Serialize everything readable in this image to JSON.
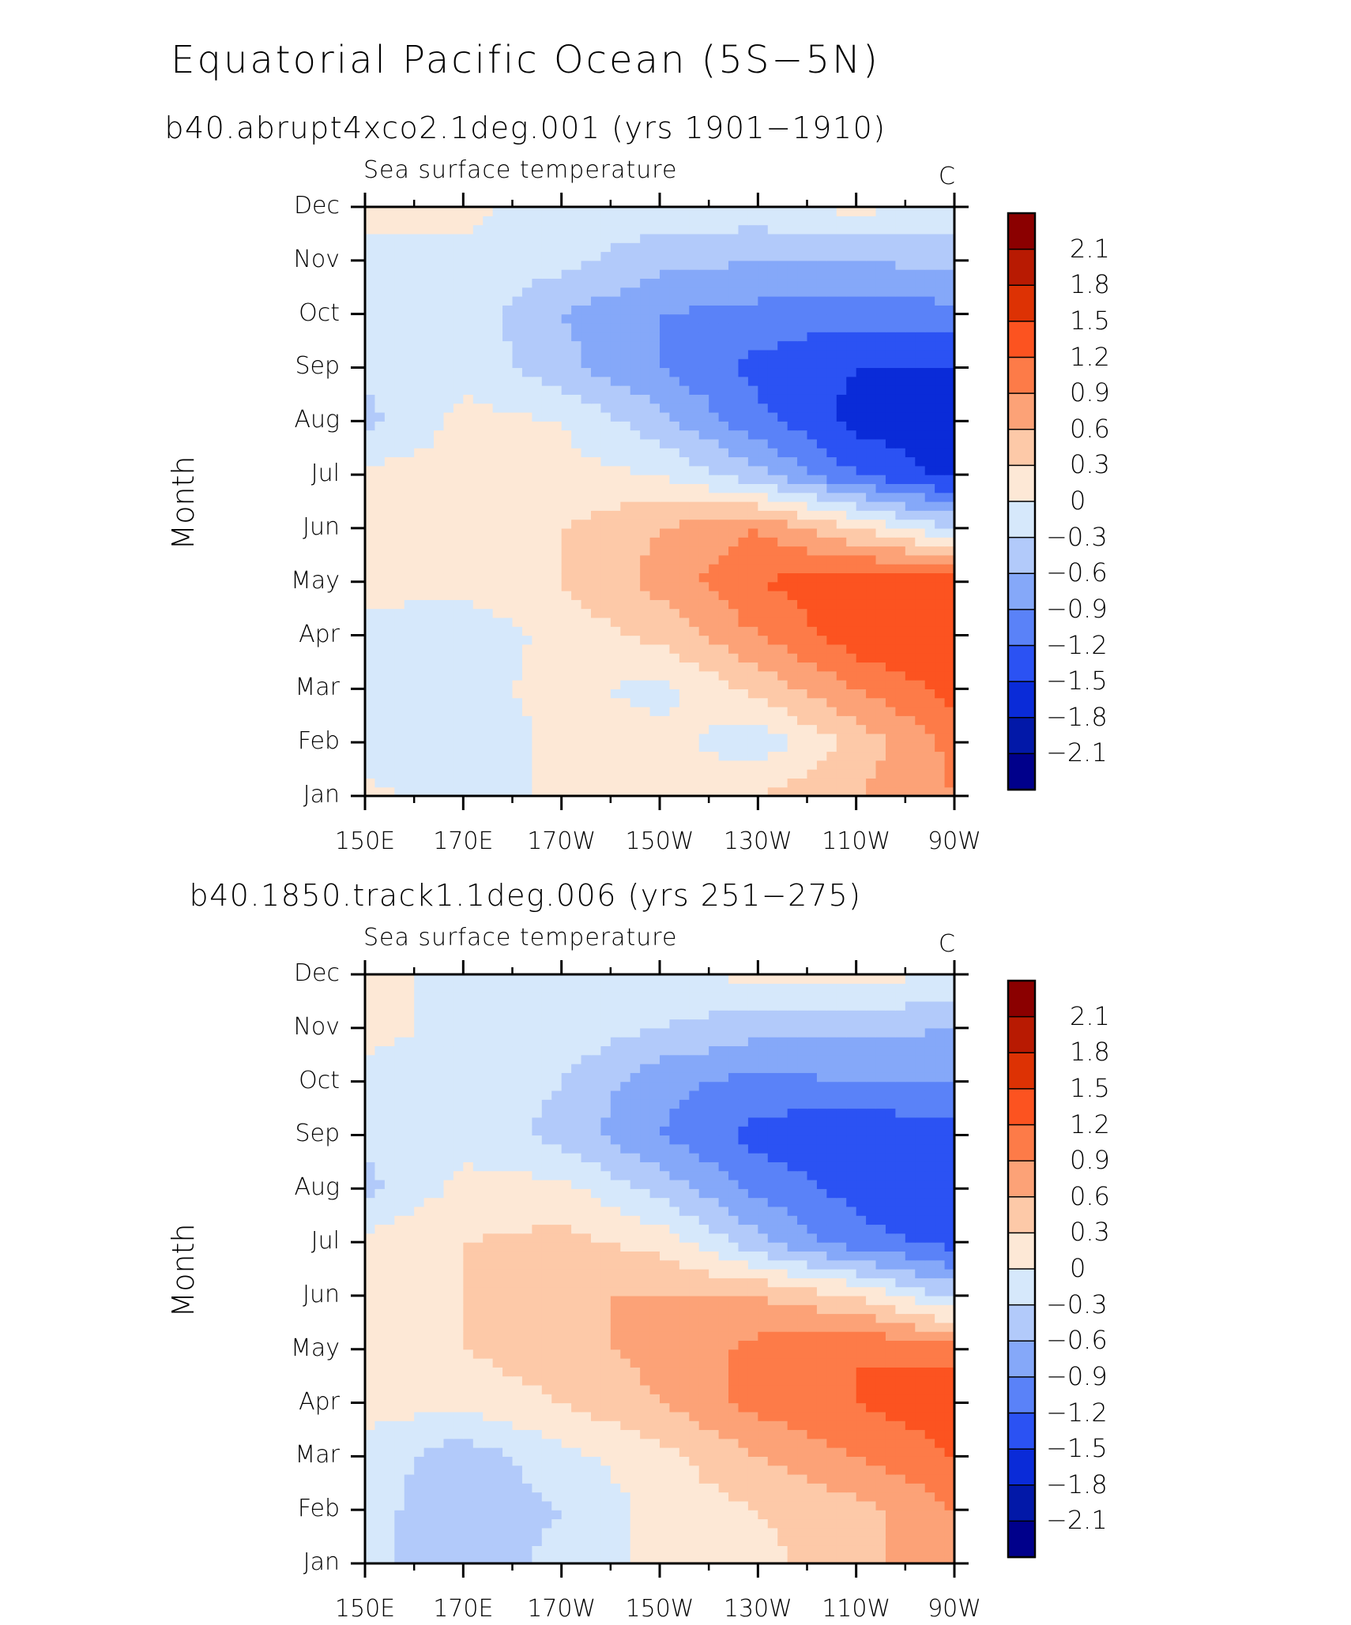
{
  "title": "Equatorial Pacific Ocean (5S−5N)",
  "months": [
    "Jan",
    "Feb",
    "Mar",
    "Apr",
    "May",
    "Jun",
    "Jul",
    "Aug",
    "Sep",
    "Oct",
    "Nov",
    "Dec"
  ],
  "lon_ticks": [
    "150E",
    "170E",
    "170W",
    "150W",
    "130W",
    "110W",
    "90W"
  ],
  "ylabel": "Month",
  "colorbar": {
    "labels": [
      "2.1",
      "1.8",
      "1.5",
      "1.2",
      "0.9",
      "0.6",
      "0.3",
      "0",
      "−0.3",
      "−0.6",
      "−0.9",
      "−1.2",
      "−1.5",
      "−1.8",
      "−2.1"
    ],
    "colors": [
      "#8b0000",
      "#b81a02",
      "#dd3204",
      "#fc5320",
      "#fd7b48",
      "#fca277",
      "#fdc9a8",
      "#fde8d6",
      "#d6e8fb",
      "#b2cafa",
      "#85a8f9",
      "#5a82f8",
      "#2b52f3",
      "#0a2bd8",
      "#0218a8",
      "#00008b"
    ]
  },
  "chart_data": [
    {
      "type": "heatmap",
      "subtitle": "b40.abrupt4xco2.1deg.001 (yrs 1901−1910)",
      "variable": "Sea surface temperature",
      "units": "C",
      "xlabel": "",
      "ylabel": "Month",
      "x": [
        "150E",
        "170E",
        "170W",
        "150W",
        "130W",
        "110W",
        "90W"
      ],
      "y": [
        "Jan",
        "Feb",
        "Mar",
        "Apr",
        "May",
        "Jun",
        "Jul",
        "Aug",
        "Sep",
        "Oct",
        "Nov",
        "Dec"
      ],
      "zlim": [
        -2.1,
        2.1
      ],
      "values": [
        [
          0.1,
          -0.2,
          0.1,
          0.1,
          0.3,
          0.6,
          0.9
        ],
        [
          -0.2,
          -0.3,
          0.1,
          0.1,
          -0.2,
          0.4,
          1.0
        ],
        [
          -0.1,
          -0.1,
          0.1,
          -0.1,
          0.4,
          0.9,
          1.3
        ],
        [
          -0.1,
          -0.2,
          0.1,
          0.4,
          0.9,
          1.4,
          1.5
        ],
        [
          0.1,
          0.1,
          0.3,
          0.7,
          1.2,
          1.4,
          1.4
        ],
        [
          0.1,
          0.1,
          0.3,
          0.6,
          0.9,
          0.3,
          -0.3
        ],
        [
          0.1,
          0.1,
          0.1,
          0.0,
          -0.5,
          -1.2,
          -1.6
        ],
        [
          -0.4,
          0.1,
          0.0,
          -0.5,
          -1.1,
          -1.6,
          -1.7
        ],
        [
          -0.2,
          -0.1,
          -0.5,
          -0.9,
          -1.3,
          -1.5,
          -1.5
        ],
        [
          -0.1,
          -0.1,
          -0.6,
          -0.9,
          -1.0,
          -1.1,
          -1.0
        ],
        [
          -0.1,
          -0.1,
          -0.2,
          -0.5,
          -0.6,
          -0.6,
          -0.5
        ],
        [
          0.1,
          0.1,
          -0.2,
          -0.1,
          -0.1,
          0.1,
          -0.1
        ]
      ]
    },
    {
      "type": "heatmap",
      "subtitle": "b40.1850.track1.1deg.006 (yrs 251−275)",
      "variable": "Sea surface temperature",
      "units": "C",
      "xlabel": "",
      "ylabel": "Month",
      "x": [
        "150E",
        "170E",
        "170W",
        "150W",
        "130W",
        "110W",
        "90W"
      ],
      "y": [
        "Jan",
        "Feb",
        "Mar",
        "Apr",
        "May",
        "Jun",
        "Jul",
        "Aug",
        "Sep",
        "Oct",
        "Nov",
        "Dec"
      ],
      "zlim": [
        -2.1,
        2.1
      ],
      "values": [
        [
          -0.2,
          -0.5,
          -0.2,
          0.1,
          0.2,
          0.5,
          0.8
        ],
        [
          -0.2,
          -0.5,
          -0.3,
          0.1,
          0.3,
          0.5,
          0.9
        ],
        [
          -0.1,
          -0.5,
          -0.1,
          0.2,
          0.6,
          0.9,
          1.2
        ],
        [
          0.1,
          0.1,
          0.3,
          0.6,
          1.0,
          1.2,
          1.4
        ],
        [
          0.2,
          0.3,
          0.5,
          0.7,
          1.0,
          1.2,
          1.1
        ],
        [
          0.3,
          0.3,
          0.6,
          0.6,
          0.6,
          0.3,
          -0.4
        ],
        [
          0.1,
          0.3,
          0.4,
          0.2,
          -0.5,
          -1.1,
          -1.3
        ],
        [
          -0.4,
          0.1,
          0.1,
          -0.4,
          -1.0,
          -1.3,
          -1.3
        ],
        [
          -0.2,
          -0.1,
          -0.4,
          -0.9,
          -1.3,
          -1.5,
          -1.3
        ],
        [
          -0.1,
          -0.1,
          -0.3,
          -0.8,
          -1.0,
          -0.9,
          -0.9
        ],
        [
          0.1,
          -0.1,
          -0.1,
          -0.3,
          -0.5,
          -0.5,
          -0.6
        ],
        [
          0.1,
          -0.1,
          -0.1,
          -0.1,
          0.1,
          0.1,
          0.0
        ]
      ]
    }
  ]
}
